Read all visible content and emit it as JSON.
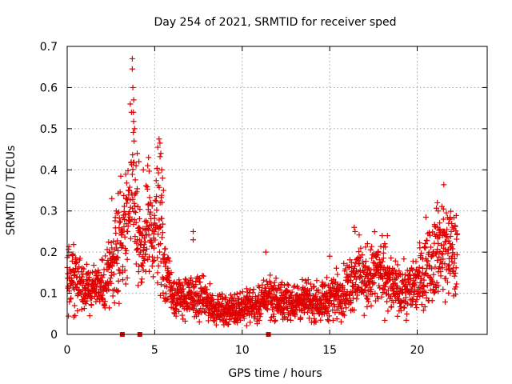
{
  "chart_data": {
    "type": "scatter",
    "title": "Day 254 of 2021, SRMTID for receiver sped",
    "xlabel": "GPS time / hours",
    "ylabel": "SRMTID / TECUs",
    "xlim": [
      0,
      24
    ],
    "ylim": [
      0,
      0.7
    ],
    "xticks": [
      0,
      5,
      10,
      15,
      20
    ],
    "yticks": [
      0,
      0.1,
      0.2,
      0.3,
      0.4,
      0.5,
      0.6,
      0.7
    ],
    "grid": true,
    "legend": "none",
    "marker": "plus",
    "color": "#e00000",
    "series": [
      {
        "name": "SRMTID",
        "profile": [
          [
            0.0,
            0.13
          ],
          [
            0.5,
            0.14
          ],
          [
            1.0,
            0.1
          ],
          [
            1.5,
            0.12
          ],
          [
            2.0,
            0.11
          ],
          [
            2.5,
            0.16
          ],
          [
            3.0,
            0.24
          ],
          [
            3.3,
            0.26
          ],
          [
            3.6,
            0.33
          ],
          [
            3.8,
            0.36
          ],
          [
            4.0,
            0.26
          ],
          [
            4.3,
            0.17
          ],
          [
            4.6,
            0.26
          ],
          [
            5.0,
            0.24
          ],
          [
            5.2,
            0.33
          ],
          [
            5.5,
            0.18
          ],
          [
            6.0,
            0.1
          ],
          [
            6.5,
            0.09
          ],
          [
            7.0,
            0.09
          ],
          [
            7.5,
            0.09
          ],
          [
            8.0,
            0.08
          ],
          [
            8.5,
            0.06
          ],
          [
            9.0,
            0.06
          ],
          [
            9.5,
            0.06
          ],
          [
            10.0,
            0.07
          ],
          [
            10.5,
            0.07
          ],
          [
            11.0,
            0.07
          ],
          [
            11.5,
            0.1
          ],
          [
            12.0,
            0.08
          ],
          [
            12.5,
            0.08
          ],
          [
            13.0,
            0.08
          ],
          [
            13.5,
            0.08
          ],
          [
            14.0,
            0.08
          ],
          [
            14.5,
            0.08
          ],
          [
            15.0,
            0.09
          ],
          [
            15.5,
            0.1
          ],
          [
            16.0,
            0.11
          ],
          [
            16.5,
            0.15
          ],
          [
            17.0,
            0.13
          ],
          [
            17.5,
            0.15
          ],
          [
            18.0,
            0.15
          ],
          [
            18.5,
            0.12
          ],
          [
            19.0,
            0.1
          ],
          [
            19.5,
            0.11
          ],
          [
            20.0,
            0.13
          ],
          [
            20.5,
            0.17
          ],
          [
            21.0,
            0.19
          ],
          [
            21.5,
            0.21
          ],
          [
            22.0,
            0.2
          ],
          [
            22.3,
            0.18
          ]
        ],
        "x_range": [
          0,
          22.3
        ],
        "spikes": [
          [
            3.72,
            0.67
          ],
          [
            3.72,
            0.645
          ],
          [
            3.75,
            0.6
          ],
          [
            3.8,
            0.57
          ],
          [
            3.78,
            0.54
          ],
          [
            3.85,
            0.5
          ],
          [
            3.82,
            0.47
          ],
          [
            4.0,
            0.44
          ],
          [
            4.1,
            0.42
          ],
          [
            4.35,
            0.4
          ],
          [
            4.6,
            0.41
          ],
          [
            4.65,
            0.43
          ],
          [
            5.25,
            0.475
          ],
          [
            5.3,
            0.465
          ],
          [
            5.35,
            0.44
          ],
          [
            5.4,
            0.4
          ],
          [
            5.45,
            0.38
          ],
          [
            3.5,
            0.35
          ],
          [
            3.4,
            0.33
          ],
          [
            2.8,
            0.3
          ],
          [
            2.55,
            0.33
          ],
          [
            5.5,
            0.35
          ],
          [
            21.15,
            0.32
          ],
          [
            21.2,
            0.3
          ],
          [
            21.5,
            0.28
          ],
          [
            21.8,
            0.27
          ],
          [
            16.4,
            0.26
          ],
          [
            16.45,
            0.25
          ],
          [
            11.35,
            0.2
          ],
          [
            7.2,
            0.25
          ],
          [
            7.2,
            0.23
          ],
          [
            18.3,
            0.24
          ],
          [
            15.0,
            0.19
          ]
        ],
        "zero_points": [
          3.15,
          4.15,
          11.5
        ]
      }
    ]
  }
}
